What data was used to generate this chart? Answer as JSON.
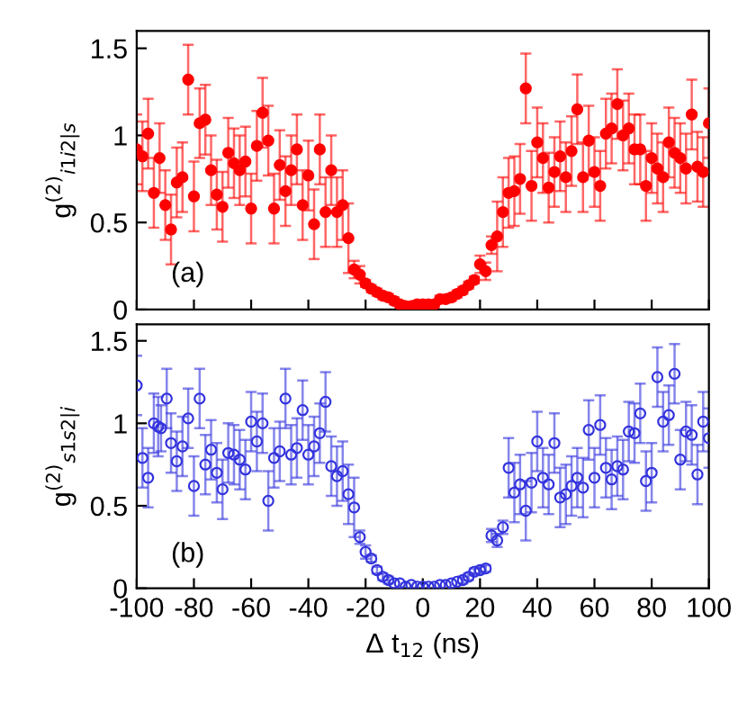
{
  "chart_data": [
    {
      "type": "scatter",
      "ylabel": "g$^{(2)}$$_{i1i2|s}$",
      "annotations": [
        "(a)"
      ],
      "xlim": [
        -100,
        100
      ],
      "xticks": [
        -100,
        -80,
        -60,
        -40,
        -20,
        0,
        20,
        40,
        60,
        80,
        100
      ],
      "ylim": [
        0,
        1.6
      ],
      "yticks": [
        0,
        0.5,
        1,
        1.5
      ],
      "tick_labels": "y",
      "marker": "circle",
      "grid": false,
      "series": [
        {
          "color": "#ff0000",
          "x": [
            -100,
            -98,
            -96,
            -94,
            -92,
            -90,
            -88,
            -86,
            -84,
            -82,
            -80,
            -78,
            -76,
            -74,
            -72,
            -70,
            -68,
            -66,
            -64,
            -62,
            -60,
            -58,
            -56,
            -54,
            -52,
            -50,
            -48,
            -46,
            -44,
            -42,
            -40,
            -38,
            -36,
            -34,
            -32,
            -30,
            -28,
            -26,
            -24,
            -22,
            -20,
            -18,
            -16,
            -14,
            -12,
            -10,
            -8,
            -6,
            -4,
            -2,
            0,
            2,
            4,
            6,
            8,
            10,
            12,
            14,
            16,
            18,
            20,
            22,
            24,
            26,
            28,
            30,
            32,
            34,
            36,
            38,
            40,
            42,
            44,
            46,
            48,
            50,
            52,
            54,
            56,
            58,
            60,
            62,
            64,
            66,
            68,
            70,
            72,
            74,
            76,
            78,
            80,
            82,
            84,
            86,
            88,
            90,
            92,
            94,
            96,
            98,
            100
          ],
          "values": [
            0.92,
            0.88,
            1.01,
            0.67,
            0.87,
            0.6,
            0.46,
            0.73,
            0.76,
            1.32,
            0.65,
            1.07,
            1.09,
            0.8,
            0.66,
            0.59,
            0.9,
            0.84,
            0.8,
            0.85,
            0.58,
            0.94,
            1.13,
            0.97,
            0.58,
            0.83,
            0.68,
            0.8,
            0.92,
            0.6,
            0.77,
            0.49,
            0.92,
            0.56,
            0.8,
            0.56,
            0.6,
            0.41,
            0.23,
            0.2,
            0.15,
            0.12,
            0.1,
            0.08,
            0.07,
            0.05,
            0.03,
            0.02,
            0.02,
            0.03,
            0.03,
            0.03,
            0.03,
            0.06,
            0.06,
            0.07,
            0.09,
            0.11,
            0.14,
            0.17,
            0.26,
            0.22,
            0.37,
            0.42,
            0.56,
            0.67,
            0.68,
            0.75,
            1.27,
            0.71,
            0.96,
            0.87,
            0.7,
            0.79,
            0.88,
            0.76,
            0.91,
            1.15,
            0.76,
            0.97,
            0.79,
            0.71,
            1.01,
            1.04,
            1.18,
            1.0,
            1.04,
            0.92,
            0.92,
            0.71,
            0.87,
            0.81,
            0.76,
            0.96,
            0.9,
            0.87,
            0.81,
            1.12,
            0.82,
            0.79,
            1.07
          ],
          "errors": [
            0.2,
            0.2,
            0.2,
            0.2,
            0.2,
            0.2,
            0.2,
            0.2,
            0.2,
            0.2,
            0.2,
            0.2,
            0.2,
            0.2,
            0.2,
            0.2,
            0.2,
            0.2,
            0.2,
            0.2,
            0.2,
            0.2,
            0.2,
            0.2,
            0.2,
            0.2,
            0.2,
            0.2,
            0.2,
            0.2,
            0.2,
            0.2,
            0.2,
            0.2,
            0.2,
            0.2,
            0.2,
            0.2,
            0.05,
            0.05,
            0.02,
            0.02,
            0.02,
            0.02,
            0.02,
            0.02,
            0.02,
            0.02,
            0.02,
            0.02,
            0.02,
            0.02,
            0.02,
            0.02,
            0.02,
            0.02,
            0.02,
            0.02,
            0.02,
            0.02,
            0.05,
            0.05,
            0.05,
            0.2,
            0.2,
            0.2,
            0.2,
            0.2,
            0.2,
            0.2,
            0.2,
            0.2,
            0.2,
            0.2,
            0.2,
            0.2,
            0.2,
            0.2,
            0.2,
            0.2,
            0.2,
            0.2,
            0.2,
            0.2,
            0.2,
            0.2,
            0.2,
            0.2,
            0.2,
            0.2,
            0.2,
            0.2,
            0.2,
            0.2,
            0.2,
            0.2,
            0.2,
            0.2,
            0.2,
            0.2,
            0.2
          ]
        }
      ]
    },
    {
      "type": "scatter",
      "ylabel": "g$^{(2)}$$_{s1s2|i}$",
      "xlabel": "Δ t$_{12}$ (ns)",
      "annotations": [
        "(b)"
      ],
      "xlim": [
        -100,
        100
      ],
      "xticks": [
        -100,
        -80,
        -60,
        -40,
        -20,
        0,
        20,
        40,
        60,
        80,
        100
      ],
      "ylim": [
        0,
        1.6
      ],
      "yticks": [
        0,
        0.5,
        1,
        1.5
      ],
      "marker": "circle",
      "grid": false,
      "series": [
        {
          "color": "#3333dd",
          "x": [
            -100,
            -98,
            -96,
            -94,
            -92.5,
            -91.5,
            -89.5,
            -88,
            -86,
            -84,
            -82,
            -80,
            -78,
            -76,
            -74,
            -72,
            -70,
            -68,
            -66,
            -64,
            -62,
            -60,
            -58,
            -56,
            -54,
            -52,
            -50,
            -48,
            -46,
            -44,
            -42,
            -40,
            -38,
            -36,
            -34,
            -32,
            -30,
            -28,
            -26,
            -24,
            -22,
            -20,
            -18,
            -16,
            -14,
            -12,
            -10,
            -8,
            -6,
            -4,
            -2,
            0,
            2,
            4,
            6,
            8,
            10,
            12,
            14,
            16,
            18,
            20,
            22,
            24,
            26,
            28,
            30,
            32,
            34,
            36,
            38,
            40,
            42,
            44,
            46,
            48,
            50,
            52,
            54,
            56,
            58,
            60,
            62,
            64,
            66,
            68,
            70,
            72,
            74,
            76,
            78,
            80,
            82,
            84,
            86,
            88,
            90,
            92,
            94,
            96,
            98,
            100
          ],
          "values": [
            1.23,
            0.79,
            0.67,
            1.0,
            0.98,
            0.97,
            1.15,
            0.88,
            0.77,
            0.86,
            1.03,
            0.62,
            1.15,
            0.75,
            0.84,
            0.7,
            0.6,
            0.82,
            0.81,
            0.78,
            0.72,
            1.01,
            0.89,
            1.0,
            0.53,
            0.79,
            0.83,
            1.15,
            0.81,
            0.85,
            1.08,
            0.81,
            0.86,
            0.94,
            1.13,
            0.74,
            0.68,
            0.71,
            0.57,
            0.49,
            0.31,
            0.22,
            0.18,
            0.11,
            0.07,
            0.05,
            0.03,
            0.03,
            0.01,
            0.02,
            0.01,
            0.01,
            0.01,
            0.01,
            0.02,
            0.02,
            0.03,
            0.04,
            0.05,
            0.07,
            0.1,
            0.11,
            0.12,
            0.32,
            0.29,
            0.37,
            0.73,
            0.58,
            0.63,
            0.47,
            0.64,
            0.89,
            0.67,
            0.63,
            0.88,
            0.55,
            0.57,
            0.62,
            0.67,
            0.61,
            0.96,
            0.67,
            0.99,
            0.73,
            0.66,
            0.74,
            0.72,
            0.95,
            0.94,
            1.06,
            0.65,
            0.7,
            1.28,
            1.01,
            1.05,
            1.3,
            0.78,
            0.95,
            0.93,
            0.69,
            1.01,
            0.91
          ],
          "errors": [
            0.18,
            0.18,
            0.18,
            0.18,
            0.18,
            0.14,
            0.18,
            0.18,
            0.18,
            0.18,
            0.18,
            0.18,
            0.18,
            0.18,
            0.18,
            0.18,
            0.18,
            0.18,
            0.18,
            0.18,
            0.18,
            0.18,
            0.18,
            0.18,
            0.18,
            0.18,
            0.18,
            0.18,
            0.18,
            0.18,
            0.18,
            0.18,
            0.18,
            0.18,
            0.18,
            0.18,
            0.18,
            0.18,
            0.18,
            0.18,
            0.04,
            0.04,
            0.02,
            0.02,
            0.02,
            0.02,
            null,
            null,
            null,
            null,
            null,
            null,
            null,
            null,
            null,
            null,
            null,
            null,
            0.02,
            0.02,
            0.02,
            0.02,
            0.02,
            0.04,
            0.04,
            0.04,
            0.18,
            0.18,
            0.18,
            0.18,
            0.18,
            0.18,
            0.18,
            0.18,
            0.18,
            0.18,
            0.18,
            0.18,
            0.18,
            0.18,
            0.18,
            0.18,
            0.18,
            0.18,
            0.18,
            0.18,
            0.18,
            0.18,
            0.18,
            0.18,
            0.18,
            0.18,
            0.18,
            0.18,
            0.18,
            0.18,
            0.18,
            0.18,
            0.18,
            0.18,
            0.18,
            0.18
          ]
        }
      ]
    }
  ]
}
